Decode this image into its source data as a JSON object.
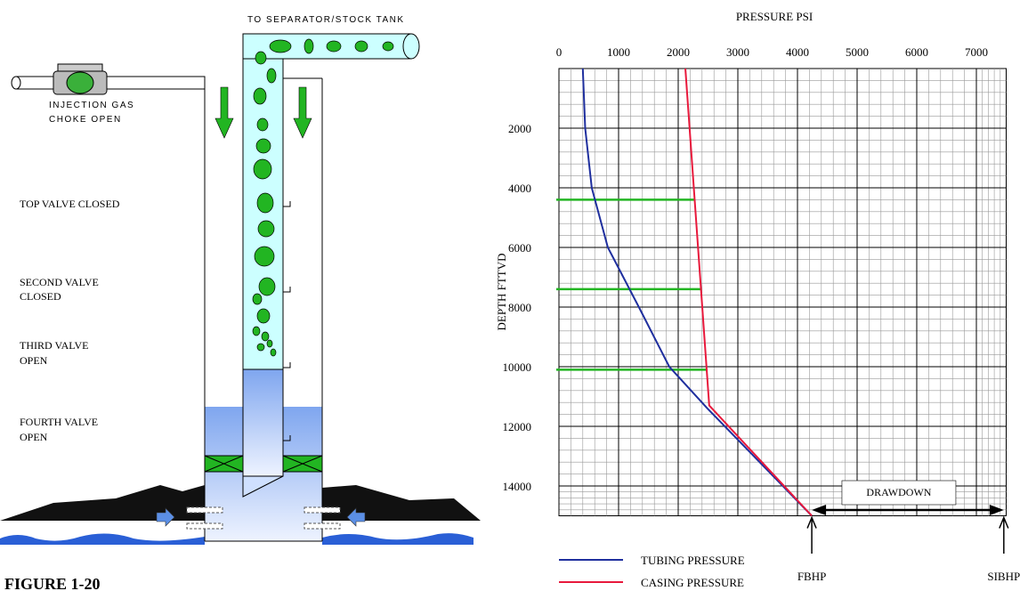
{
  "diagram": {
    "pipe_label": "TO SEPARATOR/STOCK TANK",
    "injection": [
      "INJECTION GAS",
      "CHOKE OPEN"
    ],
    "valves": [
      [
        "TOP VALVE CLOSED"
      ],
      [
        "SECOND VALVE",
        "CLOSED"
      ],
      [
        "THIRD VALVE",
        "OPEN"
      ],
      [
        "FOURTH VALVE",
        "OPEN"
      ]
    ],
    "figure_label": "FIGURE 1-20"
  },
  "chart_data": {
    "type": "line",
    "title": "PRESSURE PSI",
    "y_label": "DEPTH FTTVD",
    "xlim": [
      0,
      7500
    ],
    "xticks": [
      0,
      1000,
      2000,
      3000,
      4000,
      5000,
      6000,
      7000
    ],
    "ylim": [
      0,
      15000
    ],
    "yticks": [
      2000,
      4000,
      6000,
      8000,
      10000,
      12000,
      14000
    ],
    "grid": true,
    "series": [
      {
        "name": "TUBING PRESSURE",
        "color": "#1f2f9e",
        "depths": [
          0,
          2000,
          4000,
          6000,
          8000,
          10000,
          11400,
          15000
        ],
        "values": [
          400,
          440,
          550,
          820,
          1340,
          1850,
          2490,
          4240
        ]
      },
      {
        "name": "CASING PRESSURE",
        "color": "#e8193c",
        "depths": [
          0,
          11300,
          15000
        ],
        "values": [
          2120,
          2520,
          4240
        ]
      }
    ],
    "valve_depths": [
      4400,
      7400,
      10100
    ],
    "valve_color": "#22b522",
    "annotations": [
      {
        "text": "FBHP",
        "value": 4240
      },
      {
        "text": "SIBHP",
        "value": 7460
      },
      {
        "text": "DRAWDOWN"
      }
    ]
  }
}
